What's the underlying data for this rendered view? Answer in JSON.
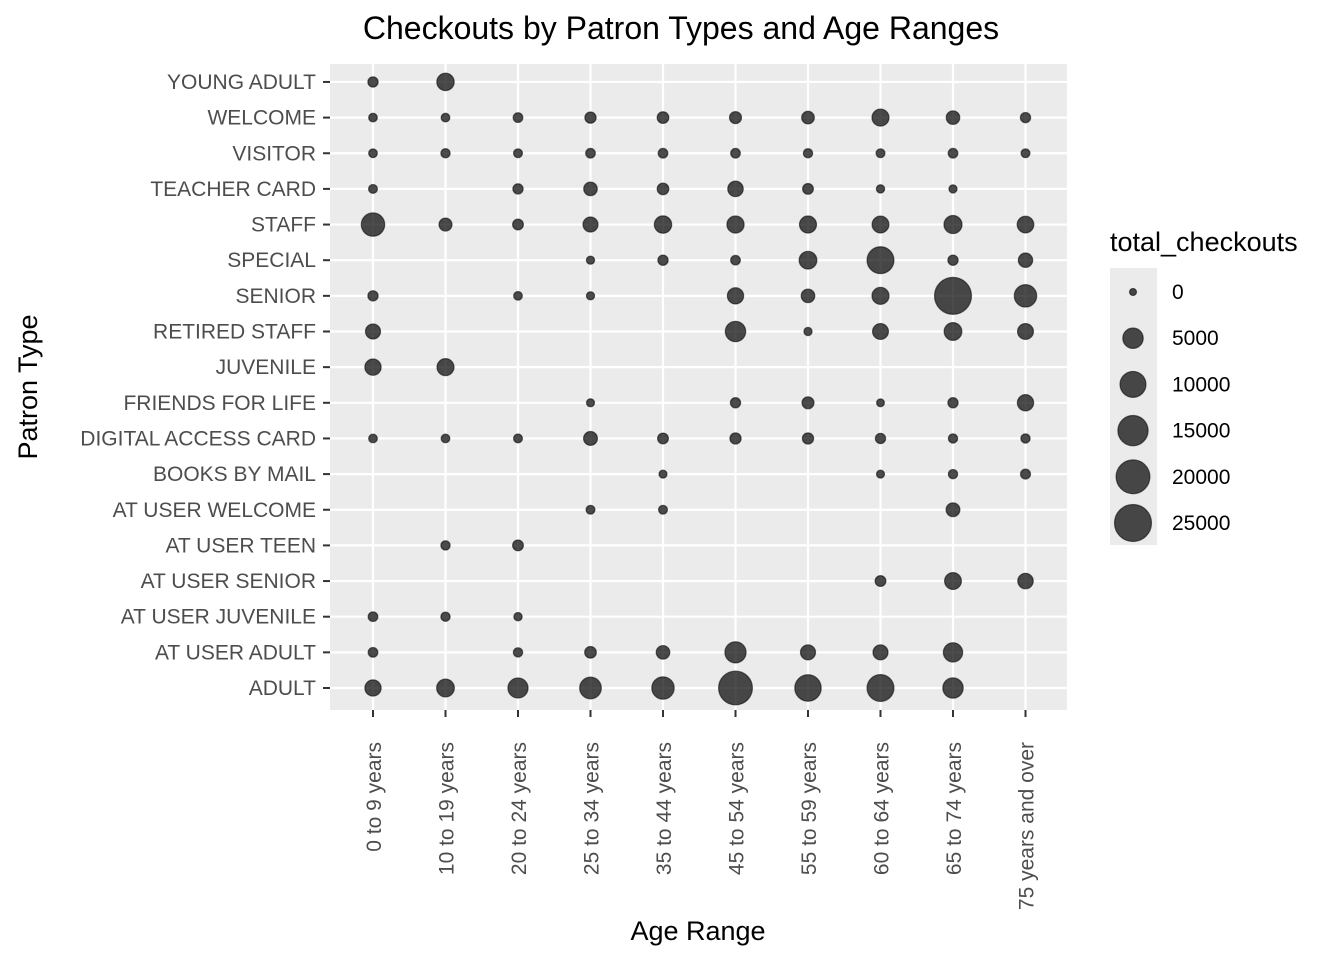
{
  "chart_data": {
    "type": "scatter",
    "title": "Checkouts by Patron Types and Age Ranges",
    "xlabel": "Age Range",
    "ylabel": "Patron Type",
    "x_categories": [
      "0 to 9 years",
      "10 to 19 years",
      "20 to 24 years",
      "25 to 34 years",
      "35 to 44 years",
      "45 to 54 years",
      "55 to 59 years",
      "60 to 64 years",
      "65 to 74 years",
      "75 years and over"
    ],
    "y_categories": [
      "ADULT",
      "AT USER ADULT",
      "AT USER JUVENILE",
      "AT USER SENIOR",
      "AT USER TEEN",
      "AT USER WELCOME",
      "BOOKS BY MAIL",
      "DIGITAL ACCESS CARD",
      "FRIENDS FOR LIFE",
      "JUVENILE",
      "RETIRED STAFF",
      "SENIOR",
      "SPECIAL",
      "STAFF",
      "TEACHER CARD",
      "VISITOR",
      "WELCOME",
      "YOUNG ADULT"
    ],
    "size_legend": {
      "title": "total_checkouts",
      "values": [
        0,
        5000,
        10000,
        15000,
        20000,
        25000
      ],
      "labels": [
        "0",
        "5000",
        "10000",
        "15000",
        "20000",
        "25000"
      ]
    },
    "point_color": "#000000",
    "point_alpha": 0.7,
    "panel_background": "#ebebeb",
    "grid_color": "#ffffff",
    "grid": true,
    "legend_position": "right",
    "points": [
      {
        "x": "0 to 9 years",
        "y": "YOUNG ADULT",
        "total_checkouts": 300
      },
      {
        "x": "10 to 19 years",
        "y": "YOUNG ADULT",
        "total_checkouts": 3000
      },
      {
        "x": "0 to 9 years",
        "y": "WELCOME",
        "total_checkouts": 80
      },
      {
        "x": "10 to 19 years",
        "y": "WELCOME",
        "total_checkouts": 80
      },
      {
        "x": "20 to 24 years",
        "y": "WELCOME",
        "total_checkouts": 200
      },
      {
        "x": "25 to 34 years",
        "y": "WELCOME",
        "total_checkouts": 500
      },
      {
        "x": "35 to 44 years",
        "y": "WELCOME",
        "total_checkouts": 600
      },
      {
        "x": "45 to 54 years",
        "y": "WELCOME",
        "total_checkouts": 700
      },
      {
        "x": "55 to 59 years",
        "y": "WELCOME",
        "total_checkouts": 900
      },
      {
        "x": "60 to 64 years",
        "y": "WELCOME",
        "total_checkouts": 2800
      },
      {
        "x": "65 to 74 years",
        "y": "WELCOME",
        "total_checkouts": 1200
      },
      {
        "x": "75 years and over",
        "y": "WELCOME",
        "total_checkouts": 300
      },
      {
        "x": "0 to 9 years",
        "y": "VISITOR",
        "total_checkouts": 80
      },
      {
        "x": "10 to 19 years",
        "y": "VISITOR",
        "total_checkouts": 150
      },
      {
        "x": "20 to 24 years",
        "y": "VISITOR",
        "total_checkouts": 100
      },
      {
        "x": "25 to 34 years",
        "y": "VISITOR",
        "total_checkouts": 200
      },
      {
        "x": "35 to 44 years",
        "y": "VISITOR",
        "total_checkouts": 200
      },
      {
        "x": "45 to 54 years",
        "y": "VISITOR",
        "total_checkouts": 200
      },
      {
        "x": "55 to 59 years",
        "y": "VISITOR",
        "total_checkouts": 150
      },
      {
        "x": "60 to 64 years",
        "y": "VISITOR",
        "total_checkouts": 100
      },
      {
        "x": "65 to 74 years",
        "y": "VISITOR",
        "total_checkouts": 200
      },
      {
        "x": "75 years and over",
        "y": "VISITOR",
        "total_checkouts": 100
      },
      {
        "x": "0 to 9 years",
        "y": "TEACHER CARD",
        "total_checkouts": 100
      },
      {
        "x": "20 to 24 years",
        "y": "TEACHER CARD",
        "total_checkouts": 300
      },
      {
        "x": "25 to 34 years",
        "y": "TEACHER CARD",
        "total_checkouts": 1200
      },
      {
        "x": "35 to 44 years",
        "y": "TEACHER CARD",
        "total_checkouts": 600
      },
      {
        "x": "45 to 54 years",
        "y": "TEACHER CARD",
        "total_checkouts": 2000
      },
      {
        "x": "55 to 59 years",
        "y": "TEACHER CARD",
        "total_checkouts": 400
      },
      {
        "x": "60 to 64 years",
        "y": "TEACHER CARD",
        "total_checkouts": 50
      },
      {
        "x": "65 to 74 years",
        "y": "TEACHER CARD",
        "total_checkouts": 40
      },
      {
        "x": "0 to 9 years",
        "y": "STAFF",
        "total_checkouts": 7500
      },
      {
        "x": "10 to 19 years",
        "y": "STAFF",
        "total_checkouts": 1000
      },
      {
        "x": "20 to 24 years",
        "y": "STAFF",
        "total_checkouts": 400
      },
      {
        "x": "25 to 34 years",
        "y": "STAFF",
        "total_checkouts": 1800
      },
      {
        "x": "35 to 44 years",
        "y": "STAFF",
        "total_checkouts": 3000
      },
      {
        "x": "45 to 54 years",
        "y": "STAFF",
        "total_checkouts": 2900
      },
      {
        "x": "55 to 59 years",
        "y": "STAFF",
        "total_checkouts": 2800
      },
      {
        "x": "60 to 64 years",
        "y": "STAFF",
        "total_checkouts": 2700
      },
      {
        "x": "65 to 74 years",
        "y": "STAFF",
        "total_checkouts": 3400
      },
      {
        "x": "75 years and over",
        "y": "STAFF",
        "total_checkouts": 2600
      },
      {
        "x": "25 to 34 years",
        "y": "SPECIAL",
        "total_checkouts": 40
      },
      {
        "x": "35 to 44 years",
        "y": "SPECIAL",
        "total_checkouts": 300
      },
      {
        "x": "45 to 54 years",
        "y": "SPECIAL",
        "total_checkouts": 200
      },
      {
        "x": "55 to 59 years",
        "y": "SPECIAL",
        "total_checkouts": 3200
      },
      {
        "x": "60 to 64 years",
        "y": "SPECIAL",
        "total_checkouts": 11000
      },
      {
        "x": "65 to 74 years",
        "y": "SPECIAL",
        "total_checkouts": 300
      },
      {
        "x": "75 years and over",
        "y": "SPECIAL",
        "total_checkouts": 1500
      },
      {
        "x": "0 to 9 years",
        "y": "SENIOR",
        "total_checkouts": 300
      },
      {
        "x": "20 to 24 years",
        "y": "SENIOR",
        "total_checkouts": 80
      },
      {
        "x": "25 to 34 years",
        "y": "SENIOR",
        "total_checkouts": 40
      },
      {
        "x": "45 to 54 years",
        "y": "SENIOR",
        "total_checkouts": 2400
      },
      {
        "x": "55 to 59 years",
        "y": "SENIOR",
        "total_checkouts": 1200
      },
      {
        "x": "60 to 64 years",
        "y": "SENIOR",
        "total_checkouts": 2800
      },
      {
        "x": "65 to 74 years",
        "y": "SENIOR",
        "total_checkouts": 25000
      },
      {
        "x": "75 years and over",
        "y": "SENIOR",
        "total_checkouts": 6600
      },
      {
        "x": "0 to 9 years",
        "y": "RETIRED STAFF",
        "total_checkouts": 1800
      },
      {
        "x": "45 to 54 years",
        "y": "RETIRED STAFF",
        "total_checkouts": 5000
      },
      {
        "x": "55 to 59 years",
        "y": "RETIRED STAFF",
        "total_checkouts": 40
      },
      {
        "x": "60 to 64 years",
        "y": "RETIRED STAFF",
        "total_checkouts": 2200
      },
      {
        "x": "65 to 74 years",
        "y": "RETIRED STAFF",
        "total_checkouts": 3200
      },
      {
        "x": "75 years and over",
        "y": "RETIRED STAFF",
        "total_checkouts": 2200
      },
      {
        "x": "0 to 9 years",
        "y": "JUVENILE",
        "total_checkouts": 2400
      },
      {
        "x": "10 to 19 years",
        "y": "JUVENILE",
        "total_checkouts": 2800
      },
      {
        "x": "25 to 34 years",
        "y": "FRIENDS FOR LIFE",
        "total_checkouts": 30
      },
      {
        "x": "45 to 54 years",
        "y": "FRIENDS FOR LIFE",
        "total_checkouts": 300
      },
      {
        "x": "55 to 59 years",
        "y": "FRIENDS FOR LIFE",
        "total_checkouts": 700
      },
      {
        "x": "60 to 64 years",
        "y": "FRIENDS FOR LIFE",
        "total_checkouts": 20
      },
      {
        "x": "65 to 74 years",
        "y": "FRIENDS FOR LIFE",
        "total_checkouts": 300
      },
      {
        "x": "75 years and over",
        "y": "FRIENDS FOR LIFE",
        "total_checkouts": 2400
      },
      {
        "x": "0 to 9 years",
        "y": "DIGITAL ACCESS CARD",
        "total_checkouts": 80
      },
      {
        "x": "10 to 19 years",
        "y": "DIGITAL ACCESS CARD",
        "total_checkouts": 80
      },
      {
        "x": "20 to 24 years",
        "y": "DIGITAL ACCESS CARD",
        "total_checkouts": 100
      },
      {
        "x": "25 to 34 years",
        "y": "DIGITAL ACCESS CARD",
        "total_checkouts": 1300
      },
      {
        "x": "35 to 44 years",
        "y": "DIGITAL ACCESS CARD",
        "total_checkouts": 400
      },
      {
        "x": "45 to 54 years",
        "y": "DIGITAL ACCESS CARD",
        "total_checkouts": 500
      },
      {
        "x": "55 to 59 years",
        "y": "DIGITAL ACCESS CARD",
        "total_checkouts": 500
      },
      {
        "x": "60 to 64 years",
        "y": "DIGITAL ACCESS CARD",
        "total_checkouts": 300
      },
      {
        "x": "65 to 74 years",
        "y": "DIGITAL ACCESS CARD",
        "total_checkouts": 150
      },
      {
        "x": "75 years and over",
        "y": "DIGITAL ACCESS CARD",
        "total_checkouts": 150
      },
      {
        "x": "35 to 44 years",
        "y": "BOOKS BY MAIL",
        "total_checkouts": 30
      },
      {
        "x": "60 to 64 years",
        "y": "BOOKS BY MAIL",
        "total_checkouts": 30
      },
      {
        "x": "65 to 74 years",
        "y": "BOOKS BY MAIL",
        "total_checkouts": 150
      },
      {
        "x": "75 years and over",
        "y": "BOOKS BY MAIL",
        "total_checkouts": 250
      },
      {
        "x": "25 to 34 years",
        "y": "AT USER WELCOME",
        "total_checkouts": 100
      },
      {
        "x": "35 to 44 years",
        "y": "AT USER WELCOME",
        "total_checkouts": 100
      },
      {
        "x": "65 to 74 years",
        "y": "AT USER WELCOME",
        "total_checkouts": 1300
      },
      {
        "x": "10 to 19 years",
        "y": "AT USER TEEN",
        "total_checkouts": 150
      },
      {
        "x": "20 to 24 years",
        "y": "AT USER TEEN",
        "total_checkouts": 400
      },
      {
        "x": "60 to 64 years",
        "y": "AT USER SENIOR",
        "total_checkouts": 400
      },
      {
        "x": "65 to 74 years",
        "y": "AT USER SENIOR",
        "total_checkouts": 2700
      },
      {
        "x": "75 years and over",
        "y": "AT USER SENIOR",
        "total_checkouts": 2000
      },
      {
        "x": "0 to 9 years",
        "y": "AT USER JUVENILE",
        "total_checkouts": 200
      },
      {
        "x": "10 to 19 years",
        "y": "AT USER JUVENILE",
        "total_checkouts": 150
      },
      {
        "x": "20 to 24 years",
        "y": "AT USER JUVENILE",
        "total_checkouts": 50
      },
      {
        "x": "0 to 9 years",
        "y": "AT USER ADULT",
        "total_checkouts": 200
      },
      {
        "x": "20 to 24 years",
        "y": "AT USER ADULT",
        "total_checkouts": 150
      },
      {
        "x": "25 to 34 years",
        "y": "AT USER ADULT",
        "total_checkouts": 600
      },
      {
        "x": "35 to 44 years",
        "y": "AT USER ADULT",
        "total_checkouts": 1200
      },
      {
        "x": "45 to 54 years",
        "y": "AT USER ADULT",
        "total_checkouts": 5600
      },
      {
        "x": "55 to 59 years",
        "y": "AT USER ADULT",
        "total_checkouts": 1800
      },
      {
        "x": "60 to 64 years",
        "y": "AT USER ADULT",
        "total_checkouts": 1800
      },
      {
        "x": "65 to 74 years",
        "y": "AT USER ADULT",
        "total_checkouts": 4200
      },
      {
        "x": "0 to 9 years",
        "y": "ADULT",
        "total_checkouts": 2400
      },
      {
        "x": "10 to 19 years",
        "y": "ADULT",
        "total_checkouts": 3200
      },
      {
        "x": "20 to 24 years",
        "y": "ADULT",
        "total_checkouts": 4800
      },
      {
        "x": "25 to 34 years",
        "y": "ADULT",
        "total_checkouts": 6000
      },
      {
        "x": "35 to 44 years",
        "y": "ADULT",
        "total_checkouts": 6600
      },
      {
        "x": "45 to 54 years",
        "y": "ADULT",
        "total_checkouts": 20000
      },
      {
        "x": "55 to 59 years",
        "y": "ADULT",
        "total_checkouts": 10500
      },
      {
        "x": "60 to 64 years",
        "y": "ADULT",
        "total_checkouts": 11000
      },
      {
        "x": "65 to 74 years",
        "y": "ADULT",
        "total_checkouts": 5000
      }
    ]
  }
}
